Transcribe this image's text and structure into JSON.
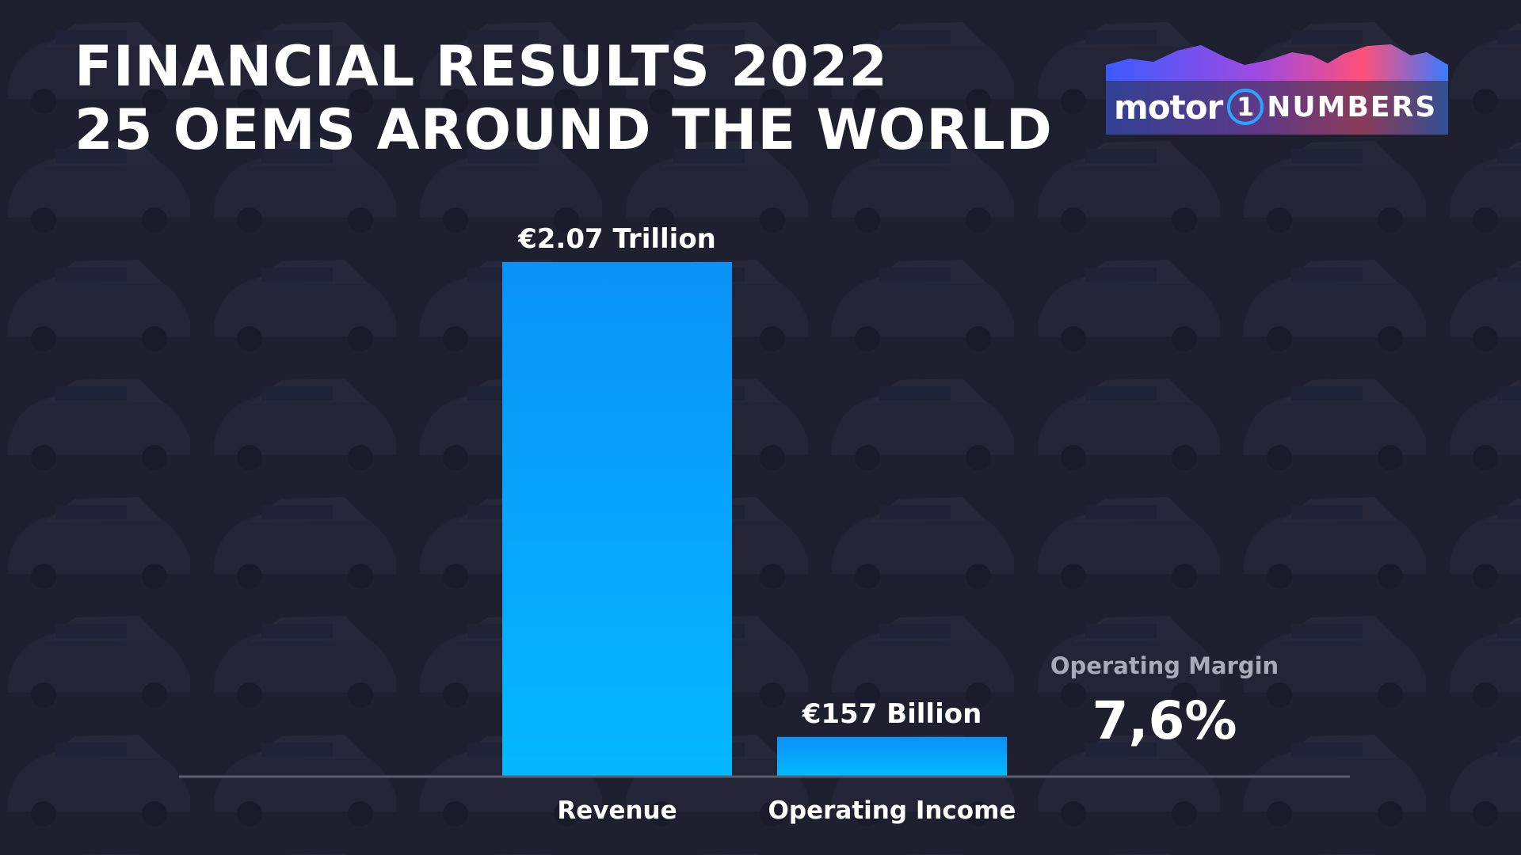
{
  "header": {
    "title_line1": "FINANCIAL RESULTS 2022",
    "title_line2": "25 OEMS AROUND THE WORLD"
  },
  "logo": {
    "motor": "motor",
    "one": "1",
    "numbers": "NUMBERS"
  },
  "chart_data": {
    "type": "bar",
    "categories": [
      "Revenue",
      "Operating Income"
    ],
    "values": [
      2070,
      157
    ],
    "unit_note": "EUR billion",
    "data_labels": [
      "€2.07 Trillion",
      "€157 Billion"
    ],
    "title": "FINANCIAL RESULTS 2022",
    "subtitle": "25 OEMS AROUND THE WORLD",
    "xlabel": "",
    "ylabel": "",
    "ylim": [
      0,
      2070
    ],
    "grid": false,
    "legend": "none"
  },
  "annotation": {
    "label": "Operating Margin",
    "value": "7,6%"
  },
  "colors": {
    "background": "#1e2030",
    "bar_top": "#0a92f7",
    "bar_bottom": "#04b8ff",
    "axis": "#5c5f70",
    "text": "#ffffff"
  }
}
